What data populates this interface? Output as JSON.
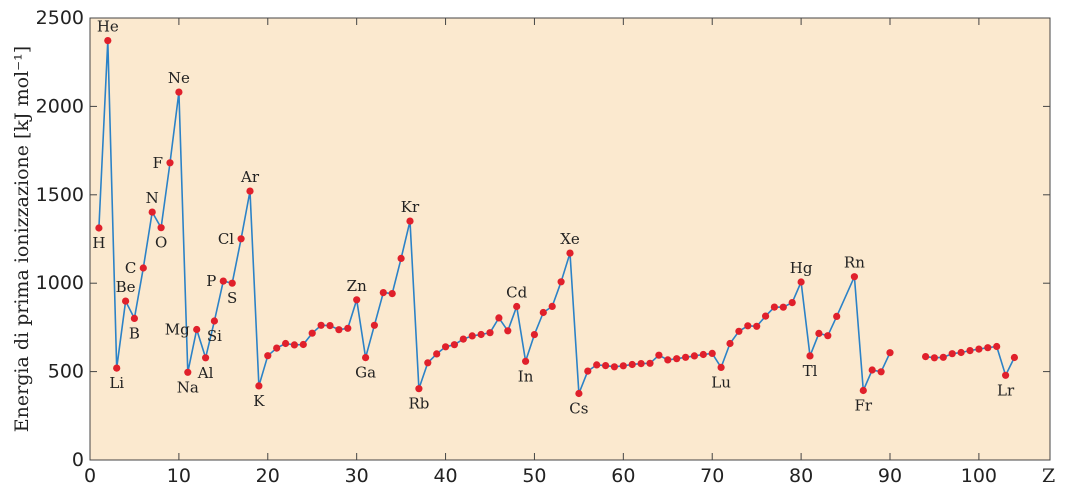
{
  "chart_data": {
    "type": "line",
    "title": "",
    "xlabel": "Z",
    "ylabel": "Energia di prima ionizzazione [kJ mol⁻¹]",
    "xlim": [
      0,
      108
    ],
    "ylim": [
      0,
      2500
    ],
    "xticks": [
      0,
      10,
      20,
      30,
      40,
      50,
      60,
      70,
      80,
      90,
      100
    ],
    "yticks": [
      0,
      500,
      1000,
      1500,
      2000,
      2500
    ],
    "grid": false,
    "colors": {
      "background": "#fbe9cf",
      "line": "#2b82c7",
      "marker": "#e0202b",
      "axis": "#444444"
    },
    "series": [
      {
        "values": [
          [
            1,
            1312
          ],
          [
            2,
            2372
          ],
          [
            3,
            520
          ],
          [
            4,
            899
          ],
          [
            5,
            801
          ],
          [
            6,
            1086
          ],
          [
            7,
            1402
          ],
          [
            8,
            1314
          ],
          [
            9,
            1681
          ],
          [
            10,
            2081
          ],
          [
            11,
            496
          ],
          [
            12,
            738
          ],
          [
            13,
            578
          ],
          [
            14,
            786
          ],
          [
            15,
            1012
          ],
          [
            16,
            1000
          ],
          [
            17,
            1251
          ],
          [
            18,
            1521
          ],
          [
            19,
            419
          ],
          [
            20,
            590
          ],
          [
            21,
            633
          ],
          [
            22,
            659
          ],
          [
            23,
            651
          ],
          [
            24,
            653
          ],
          [
            25,
            717
          ],
          [
            26,
            762
          ],
          [
            27,
            760
          ],
          [
            28,
            737
          ],
          [
            29,
            745
          ],
          [
            30,
            906
          ],
          [
            31,
            579
          ],
          [
            32,
            762
          ],
          [
            33,
            947
          ],
          [
            34,
            941
          ],
          [
            35,
            1140
          ],
          [
            36,
            1351
          ],
          [
            37,
            403
          ],
          [
            38,
            550
          ],
          [
            39,
            600
          ],
          [
            40,
            640
          ],
          [
            41,
            652
          ],
          [
            42,
            684
          ],
          [
            43,
            702
          ],
          [
            44,
            710
          ],
          [
            45,
            720
          ],
          [
            46,
            804
          ],
          [
            47,
            731
          ],
          [
            48,
            868
          ],
          [
            49,
            558
          ],
          [
            50,
            709
          ],
          [
            51,
            834
          ],
          [
            52,
            869
          ],
          [
            53,
            1008
          ],
          [
            54,
            1170
          ],
          [
            55,
            376
          ],
          [
            56,
            503
          ],
          [
            57,
            538
          ],
          [
            58,
            534
          ],
          [
            59,
            527
          ],
          [
            60,
            533
          ],
          [
            61,
            540
          ],
          [
            62,
            545
          ],
          [
            63,
            547
          ],
          [
            64,
            593
          ],
          [
            65,
            566
          ],
          [
            66,
            573
          ],
          [
            67,
            581
          ],
          [
            68,
            589
          ],
          [
            69,
            597
          ],
          [
            70,
            603
          ],
          [
            71,
            524
          ],
          [
            72,
            659
          ],
          [
            73,
            728
          ],
          [
            74,
            759
          ],
          [
            75,
            756
          ],
          [
            76,
            814
          ],
          [
            77,
            865
          ],
          [
            78,
            864
          ],
          [
            79,
            890
          ],
          [
            80,
            1007
          ],
          [
            81,
            589
          ],
          [
            82,
            716
          ],
          [
            83,
            703
          ],
          [
            84,
            812
          ],
          [
            86,
            1037
          ],
          [
            87,
            393
          ],
          [
            88,
            509
          ],
          [
            89,
            499
          ],
          [
            90,
            607
          ]
        ]
      },
      {
        "values": [
          [
            94,
            585
          ],
          [
            95,
            578
          ],
          [
            96,
            581
          ],
          [
            97,
            601
          ],
          [
            98,
            608
          ],
          [
            99,
            619
          ],
          [
            100,
            627
          ],
          [
            101,
            635
          ],
          [
            102,
            642
          ],
          [
            103,
            479
          ],
          [
            104,
            580
          ]
        ]
      }
    ],
    "element_labels": [
      {
        "z": 1,
        "text": "H",
        "pos": "below"
      },
      {
        "z": 2,
        "text": "He",
        "pos": "above"
      },
      {
        "z": 3,
        "text": "Li",
        "pos": "below"
      },
      {
        "z": 4,
        "text": "Be",
        "pos": "above"
      },
      {
        "z": 5,
        "text": "B",
        "pos": "below"
      },
      {
        "z": 6,
        "text": "C",
        "pos": "left"
      },
      {
        "z": 7,
        "text": "N",
        "pos": "above"
      },
      {
        "z": 8,
        "text": "O",
        "pos": "below"
      },
      {
        "z": 9,
        "text": "F",
        "pos": "left"
      },
      {
        "z": 10,
        "text": "Ne",
        "pos": "above"
      },
      {
        "z": 11,
        "text": "Na",
        "pos": "below"
      },
      {
        "z": 12,
        "text": "Mg",
        "pos": "left"
      },
      {
        "z": 13,
        "text": "Al",
        "pos": "below"
      },
      {
        "z": 14,
        "text": "Si",
        "pos": "below"
      },
      {
        "z": 15,
        "text": "P",
        "pos": "left"
      },
      {
        "z": 16,
        "text": "S",
        "pos": "below"
      },
      {
        "z": 17,
        "text": "Cl",
        "pos": "left"
      },
      {
        "z": 18,
        "text": "Ar",
        "pos": "above"
      },
      {
        "z": 19,
        "text": "K",
        "pos": "below"
      },
      {
        "z": 30,
        "text": "Zn",
        "pos": "above"
      },
      {
        "z": 31,
        "text": "Ga",
        "pos": "below"
      },
      {
        "z": 36,
        "text": "Kr",
        "pos": "above"
      },
      {
        "z": 37,
        "text": "Rb",
        "pos": "below"
      },
      {
        "z": 48,
        "text": "Cd",
        "pos": "above"
      },
      {
        "z": 49,
        "text": "In",
        "pos": "below"
      },
      {
        "z": 54,
        "text": "Xe",
        "pos": "above"
      },
      {
        "z": 55,
        "text": "Cs",
        "pos": "below"
      },
      {
        "z": 71,
        "text": "Lu",
        "pos": "below"
      },
      {
        "z": 80,
        "text": "Hg",
        "pos": "above"
      },
      {
        "z": 81,
        "text": "Tl",
        "pos": "below"
      },
      {
        "z": 86,
        "text": "Rn",
        "pos": "above"
      },
      {
        "z": 87,
        "text": "Fr",
        "pos": "below"
      },
      {
        "z": 103,
        "text": "Lr",
        "pos": "below"
      }
    ]
  }
}
